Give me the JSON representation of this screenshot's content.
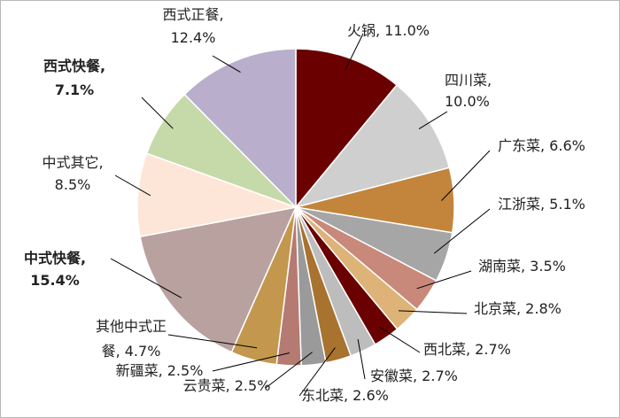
{
  "chart_data": {
    "type": "pie",
    "title": "",
    "legend": "none",
    "start": "12 o'clock, clockwise",
    "slices": [
      {
        "label": "火锅",
        "value": 11.0,
        "value_text": "11.0%",
        "color": "#6b0000"
      },
      {
        "label": "四川菜",
        "value": 10.0,
        "value_text": "10.0%",
        "color": "#cfcfcf"
      },
      {
        "label": "广东菜",
        "value": 6.6,
        "value_text": "6.6%",
        "color": "#c2853b"
      },
      {
        "label": "江浙菜",
        "value": 5.1,
        "value_text": "5.1%",
        "color": "#a6a6a6"
      },
      {
        "label": "湖南菜",
        "value": 3.5,
        "value_text": "3.5%",
        "color": "#c8887a"
      },
      {
        "label": "北京菜",
        "value": 2.8,
        "value_text": "2.8%",
        "color": "#ddb377"
      },
      {
        "label": "西北菜",
        "value": 2.7,
        "value_text": "2.7%",
        "color": "#6b0000"
      },
      {
        "label": "安徽菜",
        "value": 2.7,
        "value_text": "2.7%",
        "color": "#bdbdbd"
      },
      {
        "label": "东北菜",
        "value": 2.6,
        "value_text": "2.6%",
        "color": "#a8722f"
      },
      {
        "label": "云贵菜",
        "value": 2.5,
        "value_text": "2.5%",
        "color": "#9a9a9a"
      },
      {
        "label": "新疆菜",
        "value": 2.5,
        "value_text": "2.5%",
        "color": "#b57a72"
      },
      {
        "label": "其他中式正餐",
        "value": 4.7,
        "value_text": "4.7%",
        "color": "#c4974f"
      },
      {
        "label": "中式快餐",
        "value": 15.4,
        "value_text": "15.4%",
        "color": "#b8a19f",
        "highlight_color": "#a83232"
      },
      {
        "label": "中式其它",
        "value": 8.5,
        "value_text": "8.5%",
        "color": "#fde6d8"
      },
      {
        "label": "西式快餐",
        "value": 7.1,
        "value_text": "7.1%",
        "color": "#c6d9a9",
        "highlight_color": "#6d9a3f"
      },
      {
        "label": "西式正餐",
        "value": 12.4,
        "value_text": "12.4%",
        "color": "#b9aecb"
      }
    ]
  }
}
